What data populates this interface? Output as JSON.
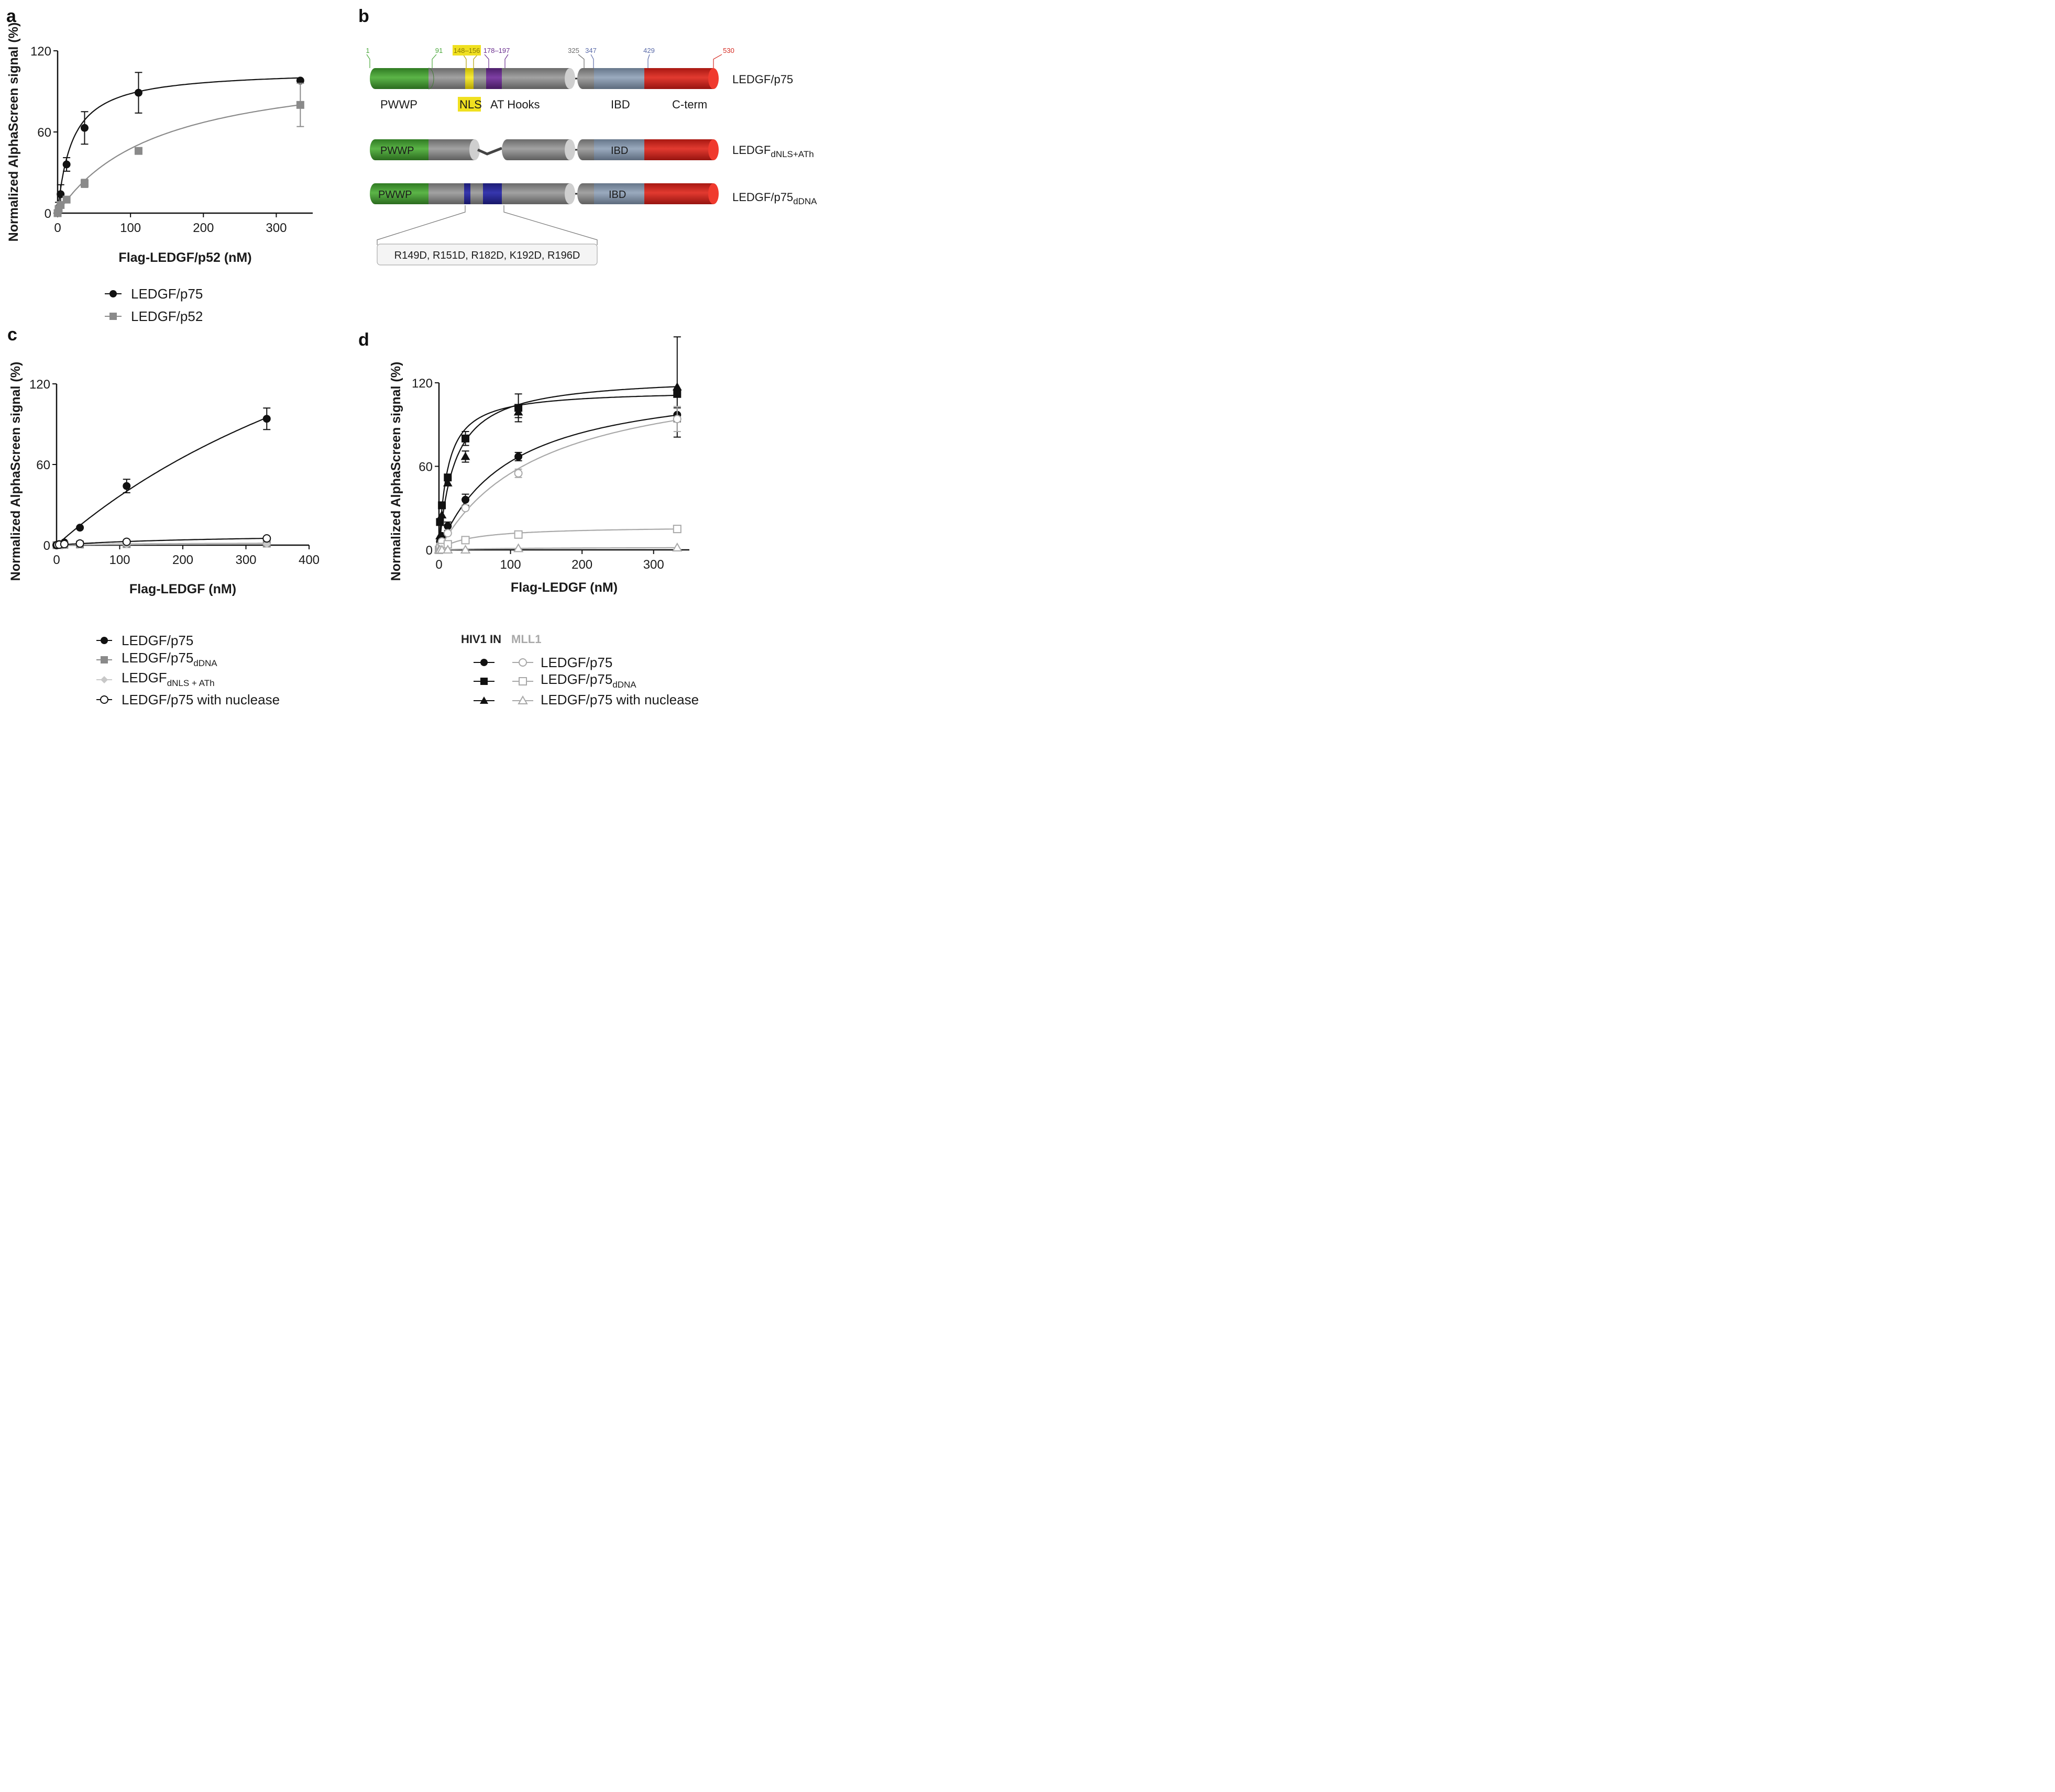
{
  "panels": {
    "a": {
      "label": "a"
    },
    "b": {
      "label": "b"
    },
    "c": {
      "label": "c"
    },
    "d": {
      "label": "d"
    }
  },
  "chart_data": [
    {
      "id": "a",
      "type": "scatter",
      "title": "",
      "xlabel": "Flag-LEDGF/p52 (nM)",
      "ylabel": "Normalized AlphaScreen signal (%)",
      "xlim": [
        0,
        350
      ],
      "ylim": [
        0,
        120
      ],
      "xticks": [
        "0",
        "100",
        "200",
        "300"
      ],
      "xtick_values": [
        0,
        100,
        200,
        300
      ],
      "yticks": [
        "0",
        "60",
        "120"
      ],
      "ytick_values": [
        0,
        60,
        120
      ],
      "series": [
        {
          "name": "LEDGF/p75",
          "color": "#111111",
          "marker": "circle",
          "filled": true,
          "x": [
            0,
            1.4,
            4.1,
            12.3,
            37,
            111,
            333
          ],
          "y": [
            0,
            4,
            14,
            36,
            63,
            89,
            98
          ],
          "err": [
            0,
            4,
            7,
            5,
            12,
            15,
            0
          ],
          "fit": {
            "bmax": 106,
            "kd": 20
          }
        },
        {
          "name": "LEDGF/p52",
          "color": "#8a8a8a",
          "marker": "square",
          "filled": true,
          "x": [
            0,
            1.4,
            4.1,
            12.3,
            37,
            111,
            333
          ],
          "y": [
            0,
            3,
            6,
            10,
            22,
            46,
            80
          ],
          "err": [
            0,
            2,
            2,
            2,
            3,
            0,
            16
          ],
          "fit": {
            "bmax": 113,
            "kd": 137
          }
        }
      ]
    },
    {
      "id": "c",
      "type": "scatter",
      "title": "",
      "xlabel": "Flag-LEDGF (nM)",
      "ylabel": "Normalized AlphaScreen signal (%)",
      "xlim": [
        0,
        400
      ],
      "ylim": [
        0,
        120
      ],
      "xticks": [
        "0",
        "100",
        "200",
        "300",
        "400"
      ],
      "xtick_values": [
        0,
        100,
        200,
        300,
        400
      ],
      "yticks": [
        "0",
        "60",
        "120"
      ],
      "ytick_values": [
        0,
        60,
        120
      ],
      "series": [
        {
          "name": "LEDGF/p75",
          "color": "#111111",
          "marker": "circle",
          "filled": true,
          "x": [
            0,
            1.4,
            4.1,
            12.3,
            37,
            111,
            333
          ],
          "y": [
            0,
            0.3,
            0.8,
            2,
            13,
            44,
            94
          ],
          "err": [
            0,
            0,
            0,
            0,
            0,
            5,
            8
          ],
          "fit": {
            "bmax": 300,
            "kd": 720
          }
        },
        {
          "name": "LEDGF/p75dDNA",
          "color": "#8a8a8a",
          "marker": "square",
          "filled": true,
          "x": [
            0,
            1.4,
            4.1,
            12.3,
            37,
            111,
            333
          ],
          "y": [
            0,
            0,
            0,
            0.3,
            0.5,
            0.8,
            1.2
          ],
          "err": [
            0,
            0,
            0,
            0,
            0,
            0,
            0
          ],
          "fit": {
            "bmax": 1.8,
            "kd": 120
          }
        },
        {
          "name": "LEDGFdNLS + ATh",
          "color": "#c8c8c8",
          "marker": "diamond",
          "filled": true,
          "x": [
            0,
            1.4,
            4.1,
            12.3,
            37,
            111,
            333
          ],
          "y": [
            0,
            0,
            0,
            0.2,
            0.3,
            0.5,
            0.8
          ],
          "err": [
            0,
            0,
            0,
            0,
            0,
            0,
            0
          ],
          "fit": {
            "bmax": 1.2,
            "kd": 120
          }
        },
        {
          "name": "LEDGF/p75 with nuclease",
          "color": "#111111",
          "marker": "circle",
          "filled": false,
          "x": [
            0,
            1.4,
            4.1,
            12.3,
            37,
            111,
            333
          ],
          "y": [
            0,
            0.2,
            0.4,
            0.8,
            1.2,
            2.5,
            5
          ],
          "err": [
            0,
            0,
            0,
            0,
            0,
            0,
            0
          ],
          "fit": {
            "bmax": 9,
            "kd": 260
          }
        }
      ]
    },
    {
      "id": "d",
      "type": "scatter",
      "title": "",
      "xlabel": "Flag-LEDGF (nM)",
      "ylabel": "Normalized AlphaScreen signal (%)",
      "xlim": [
        0,
        350
      ],
      "ylim": [
        0,
        120
      ],
      "xticks": [
        "0",
        "100",
        "200",
        "300"
      ],
      "xtick_values": [
        0,
        100,
        200,
        300
      ],
      "yticks": [
        "0",
        "60",
        "120"
      ],
      "ytick_values": [
        0,
        60,
        120
      ],
      "series": [
        {
          "name": "HIV1 IN – LEDGF/p75",
          "color": "#111111",
          "marker": "circle",
          "filled": true,
          "x": [
            0,
            1.4,
            4.1,
            12.3,
            37,
            111,
            333
          ],
          "y": [
            0,
            6,
            10,
            17,
            36,
            67,
            97
          ],
          "err": [
            0,
            0,
            0,
            3,
            4,
            3,
            5
          ],
          "fit": {
            "bmax": 125,
            "kd": 97
          }
        },
        {
          "name": "HIV1 IN – LEDGF/p75dDNA",
          "color": "#111111",
          "marker": "square",
          "filled": true,
          "x": [
            0,
            1.4,
            4.1,
            12.3,
            37,
            111,
            333
          ],
          "y": [
            0,
            20,
            32,
            52,
            80,
            102,
            112
          ],
          "err": [
            0,
            0,
            0,
            0,
            5,
            10,
            0
          ],
          "fit": {
            "bmax": 115,
            "kd": 12
          }
        },
        {
          "name": "HIV1 IN – LEDGF/p75 with nuclease",
          "color": "#111111",
          "marker": "triangle",
          "filled": true,
          "x": [
            0,
            1.4,
            4.1,
            12.3,
            37,
            111,
            333
          ],
          "y": [
            0,
            10,
            25,
            48,
            67,
            99,
            117
          ],
          "err": [
            0,
            0,
            0,
            0,
            4,
            4,
            36
          ],
          "fit": {
            "bmax": 125,
            "kd": 22
          }
        },
        {
          "name": "MLL1 – LEDGF/p75",
          "color": "#a8a8a8",
          "marker": "circle",
          "filled": false,
          "x": [
            0,
            1.4,
            4.1,
            12.3,
            37,
            111,
            333
          ],
          "y": [
            0,
            3,
            6,
            12,
            30,
            55,
            94
          ],
          "err": [
            0,
            0,
            0,
            0,
            0,
            3,
            9
          ],
          "fit": {
            "bmax": 133,
            "kd": 142
          }
        },
        {
          "name": "MLL1 – LEDGF/p75dDNA",
          "color": "#a8a8a8",
          "marker": "square",
          "filled": false,
          "x": [
            0,
            1.4,
            4.1,
            12.3,
            37,
            111,
            333
          ],
          "y": [
            0,
            1,
            2,
            4,
            7,
            11,
            15
          ],
          "err": [
            0,
            0,
            0,
            0,
            0,
            0,
            0
          ],
          "fit": {
            "bmax": 17,
            "kd": 45
          }
        },
        {
          "name": "MLL1 – LEDGF/p75 with nuclease",
          "color": "#a8a8a8",
          "marker": "triangle",
          "filled": false,
          "x": [
            0,
            1.4,
            4.1,
            12.3,
            37,
            111,
            333
          ],
          "y": [
            0,
            0,
            0,
            0,
            0,
            1,
            1.5
          ],
          "err": [
            0,
            0,
            0,
            0,
            0,
            0,
            0
          ],
          "fit": {
            "bmax": 2,
            "kd": 100
          }
        }
      ]
    },
    {
      "id": "b",
      "type": "diagram",
      "title": "",
      "residue_numbers": {
        "r1": "1",
        "r91": "91",
        "r148": "148–156",
        "r178": "178–197",
        "r325": "325",
        "r347": "347",
        "r429": "429",
        "r530": "530"
      },
      "constructs": {
        "full": "LEDGF/p75",
        "dnls_main": "LEDGF",
        "dnls_sub": "dNLS+ATh",
        "ddna_main": "LEDGF/p75",
        "ddna_sub": "dDNA"
      },
      "domains": {
        "pwwp": "PWWP",
        "nls": "NLS",
        "athooks": "AT Hooks",
        "ibd": "IBD",
        "cterm": "C-term"
      },
      "mutations": "R149D, R151D, R182D, K192D, R196D",
      "colors": {
        "pwwp": "#3f9a2e",
        "gray": "#8c8c8c",
        "nls": "#f0e020",
        "athook": "#6b2f8f",
        "ibd": "#8494a8",
        "cterm": "#d52a22",
        "mut": "#2b2b96",
        "r1": "#4aa83a",
        "r91": "#4aa83a",
        "r148": "#a09000",
        "r178": "#6b2f8f",
        "r325": "#6a6a6a",
        "r347": "#5a6aa8",
        "r429": "#5a6aa8",
        "r530": "#d52a22"
      }
    }
  ],
  "legends": {
    "a": [
      {
        "label": "LEDGF/p75"
      },
      {
        "label": "LEDGF/p52"
      }
    ],
    "c": [
      {
        "main": "LEDGF/p75",
        "sub": ""
      },
      {
        "main": "LEDGF/p75",
        "sub": "dDNA"
      },
      {
        "main": "LEDGF",
        "sub": "dNLS + ATh"
      },
      {
        "main": "LEDGF/p75 with nuclease",
        "sub": ""
      }
    ],
    "d": {
      "header_hiv": "HIV1 IN",
      "header_mll": "MLL1",
      "rows": [
        {
          "main": "LEDGF/p75",
          "sub": ""
        },
        {
          "main": "LEDGF/p75",
          "sub": "dDNA"
        },
        {
          "main": "LEDGF/p75 with nuclease",
          "sub": ""
        }
      ]
    }
  }
}
